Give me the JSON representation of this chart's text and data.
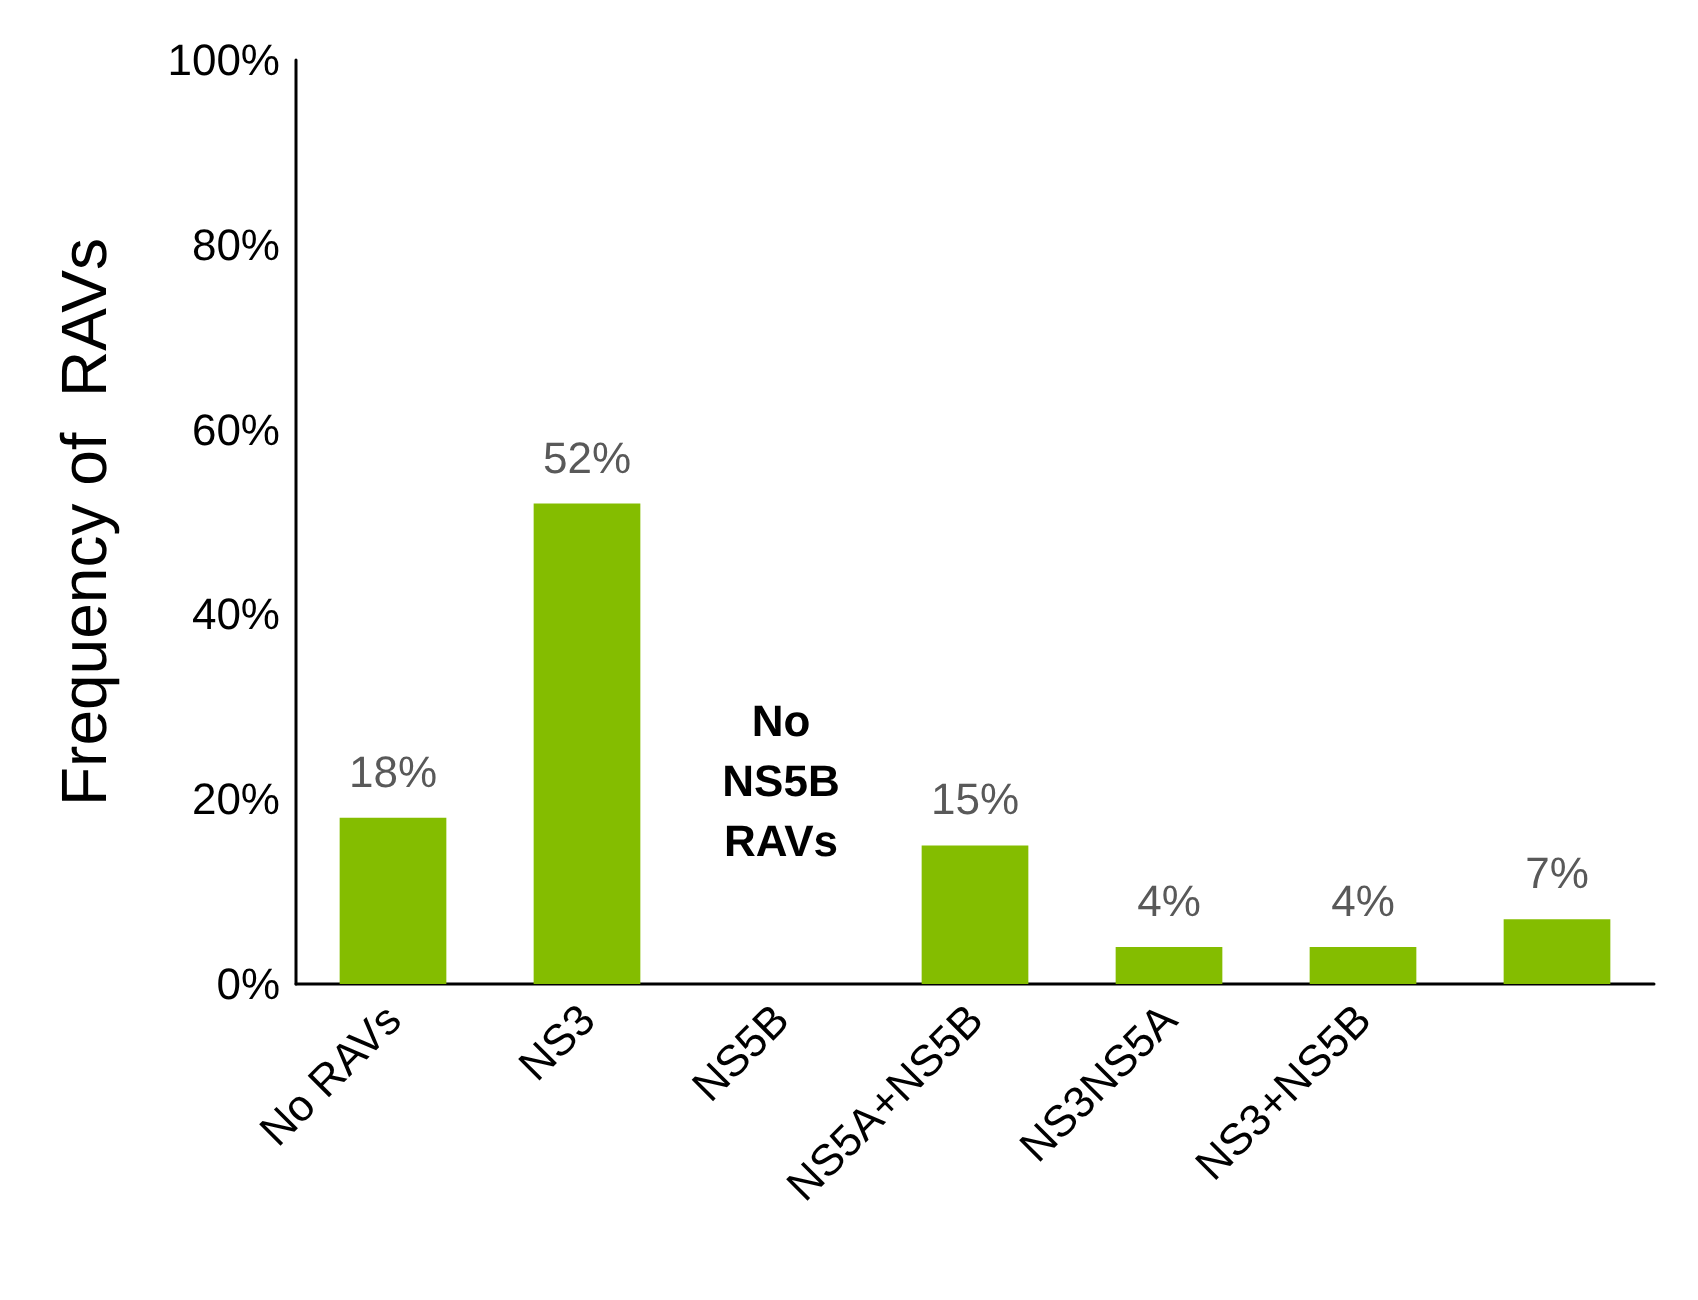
{
  "chart_data": {
    "type": "bar",
    "ylabel": "Frequency of  RAVs",
    "categories": [
      "No RAVs",
      "NS3",
      "NS5B",
      "NS5A+NS5B",
      "NS3NS5A",
      "NS3+NS5B",
      null
    ],
    "values": [
      18,
      52,
      null,
      15,
      4,
      4,
      7
    ],
    "value_labels": [
      "18%",
      "52%",
      null,
      "15%",
      "4%",
      "4%",
      "7%"
    ],
    "color": "#84bd00",
    "ylim": [
      0,
      100
    ],
    "yticks": [
      {
        "value": 0,
        "label": "0%"
      },
      {
        "value": 20,
        "label": "20%"
      },
      {
        "value": 40,
        "label": "40%"
      },
      {
        "value": 60,
        "label": "60%"
      },
      {
        "value": 80,
        "label": "80%"
      },
      {
        "value": 100,
        "label": "100%"
      }
    ],
    "annotations": [
      "No\nNS5B\nRAVs"
    ],
    "grid": false
  }
}
